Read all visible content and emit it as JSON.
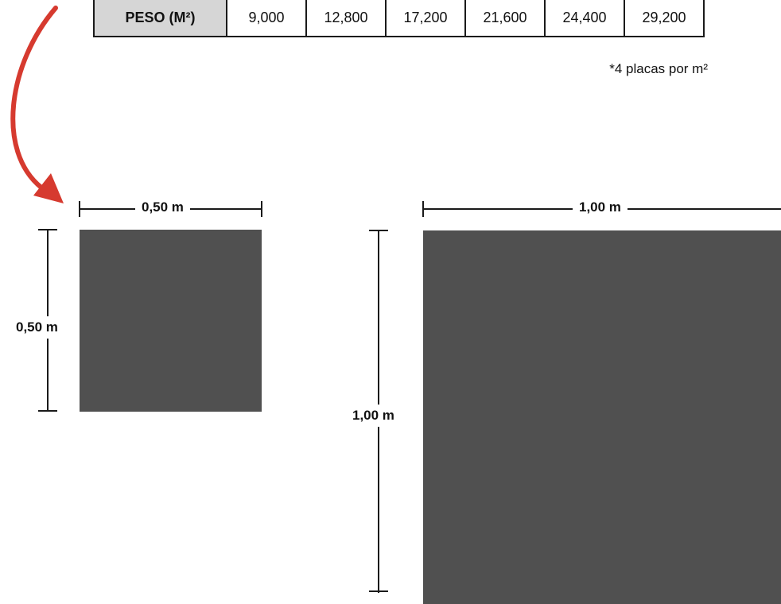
{
  "table": {
    "header": "PESO (M²)",
    "values": [
      "9,000",
      "12,800",
      "17,200",
      "21,600",
      "24,400",
      "29,200"
    ]
  },
  "footnote": "*4 placas por m²",
  "plates": {
    "small": {
      "width_label": "0,50 m",
      "height_label": "0,50 m"
    },
    "large": {
      "width_label": "1,00 m",
      "height_label": "1,00 m"
    }
  },
  "colors": {
    "plate": "#505050",
    "arrow": "#d63a2f",
    "dimension_line": "#1a1a1a",
    "header_cell": "#d6d6d6"
  },
  "icons": {
    "pointer_arrow": "curved-arrow-icon"
  }
}
